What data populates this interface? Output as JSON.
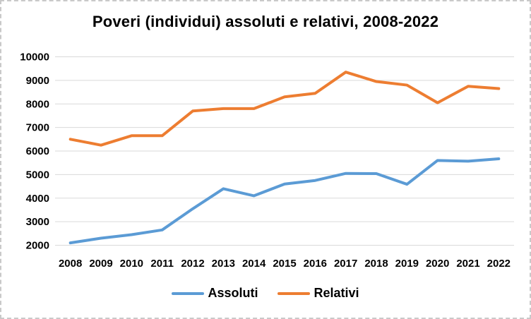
{
  "frame": {
    "background_color": "#ffffff",
    "border_color": "#c9c9c9"
  },
  "chart_data": {
    "type": "line",
    "title": "Poveri (individui) assoluti e relativi, 2008-2022",
    "categories": [
      "2008",
      "2009",
      "2010",
      "2011",
      "2012",
      "2013",
      "2014",
      "2015",
      "2016",
      "2017",
      "2018",
      "2019",
      "2020",
      "2021",
      "2022"
    ],
    "series": [
      {
        "name": "Assoluti",
        "color": "#5B9BD5",
        "values": [
          2100,
          2300,
          2450,
          2650,
          3550,
          4400,
          4100,
          4600,
          4750,
          5050,
          5040,
          4590,
          5600,
          5570,
          5670
        ]
      },
      {
        "name": "Relativi",
        "color": "#ED7D31",
        "values": [
          6500,
          6250,
          6650,
          6650,
          7700,
          7800,
          7800,
          8300,
          8450,
          9350,
          8950,
          8800,
          8050,
          8750,
          8650
        ]
      }
    ],
    "xlabel": "",
    "ylabel": "",
    "ylim": [
      2000,
      10000
    ],
    "ytick_step": 1000,
    "grid": true,
    "gridline_color": "#d9d9d9",
    "text_color": "#000000",
    "legend_position": "bottom"
  }
}
